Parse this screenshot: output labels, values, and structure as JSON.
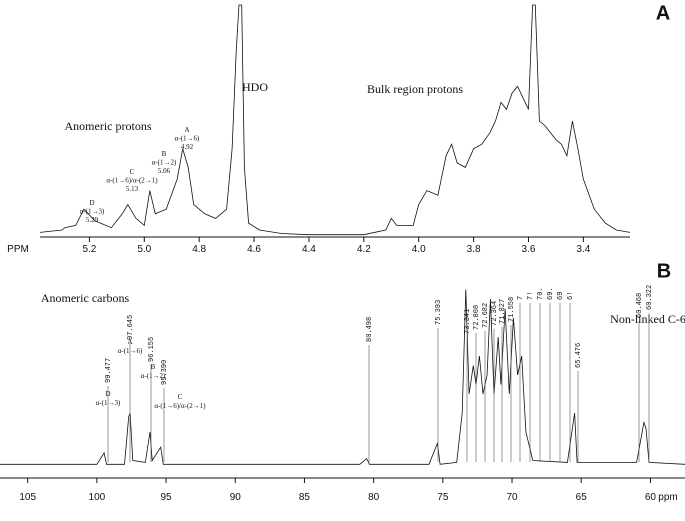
{
  "chart_data": [
    {
      "type": "line",
      "panel_label": "A",
      "color": "#111111",
      "x_label": "PPM",
      "xlim": [
        5.38,
        3.23
      ],
      "ylim": [
        0,
        100
      ],
      "xticks": [
        5.2,
        {
          "value": 5,
          "label": "5.0"
        },
        4.8,
        4.6,
        4.4,
        4.2,
        {
          "value": 4,
          "label": "4.0"
        },
        3.8,
        3.6,
        3.4
      ],
      "x": [
        5.38,
        5.3,
        5.29,
        5.25,
        5.22,
        5.18,
        5.12,
        5.08,
        5.06,
        5.03,
        5.0,
        4.98,
        4.96,
        4.92,
        4.88,
        4.86,
        4.84,
        4.82,
        4.78,
        4.74,
        4.7,
        4.68,
        4.665,
        4.655,
        4.645,
        4.635,
        4.62,
        4.58,
        4.5,
        4.4,
        4.2,
        4.12,
        4.1,
        4.08,
        4.02,
        4.0,
        3.97,
        3.93,
        3.9,
        3.88,
        3.86,
        3.83,
        3.8,
        3.77,
        3.74,
        3.72,
        3.7,
        3.68,
        3.66,
        3.64,
        3.62,
        3.6,
        3.585,
        3.575,
        3.56,
        3.54,
        3.52,
        3.5,
        3.48,
        3.46,
        3.44,
        3.42,
        3.4,
        3.36,
        3.32,
        3.28,
        3.23
      ],
      "values": [
        2,
        3,
        4,
        5,
        12,
        7,
        4,
        10,
        14,
        8,
        5,
        20,
        10,
        12,
        25,
        38,
        30,
        14,
        10,
        8,
        12,
        38,
        80,
        100,
        100,
        30,
        6,
        3,
        1.5,
        1,
        1,
        3,
        8,
        5,
        5,
        14,
        20,
        18,
        35,
        40,
        32,
        30,
        38,
        40,
        45,
        50,
        58,
        55,
        62,
        65,
        60,
        55,
        100,
        100,
        50,
        48,
        45,
        42,
        40,
        35,
        50,
        38,
        25,
        12,
        6,
        3,
        2
      ],
      "annotations": [
        {
          "lines": [
            "HDO"
          ]
        },
        {
          "lines": [
            "Bulk region protons"
          ]
        },
        {
          "lines": [
            "Anomeric protons"
          ]
        },
        {
          "lines": [
            "D",
            "α-(1→3)",
            "5.29"
          ]
        },
        {
          "lines": [
            "C",
            "α-(1→6)/α-(2→1)",
            "5.13"
          ]
        },
        {
          "lines": [
            "B",
            "α-(1→2)",
            "5.06"
          ]
        },
        {
          "lines": [
            "A",
            "α-(1→6)",
            "4.92"
          ]
        }
      ]
    },
    {
      "type": "line",
      "panel_label": "B",
      "color": "#111111",
      "x_label": "ppm",
      "xlim": [
        107,
        57.5
      ],
      "ylim": [
        0,
        100
      ],
      "xticks": [
        105,
        100,
        95,
        90,
        85,
        80,
        75,
        70,
        65,
        60
      ],
      "x": [
        107,
        100,
        99.48,
        99.3,
        98,
        97.7,
        97.6,
        97.4,
        96.5,
        96.16,
        96,
        95.39,
        95.2,
        90,
        81,
        80.5,
        80.3,
        76,
        75.39,
        75.2,
        74,
        73.6,
        73.34,
        73.1,
        72.8,
        72.6,
        72.36,
        72.1,
        71.8,
        71.56,
        71.3,
        71,
        70.8,
        70.5,
        70.2,
        69.9,
        69.6,
        69.3,
        69,
        68.5,
        66,
        65.48,
        65.3,
        61,
        60.47,
        60.32,
        60.1,
        57.5
      ],
      "values": [
        3,
        3,
        9,
        3,
        3,
        28,
        30,
        5,
        4,
        20,
        5,
        12,
        3,
        3,
        3,
        6,
        3,
        3,
        14,
        3,
        4,
        30,
        95,
        40,
        55,
        45,
        60,
        40,
        50,
        90,
        40,
        70,
        45,
        85,
        40,
        80,
        50,
        60,
        20,
        5,
        4,
        30,
        4,
        4,
        25,
        22,
        4,
        3
      ],
      "peak_labels": [
        "99.477",
        "97.645",
        "96.155",
        "95.390",
        "80.498",
        "75.393",
        "73.341",
        "72.808",
        "72.682",
        "72.364",
        "71.827",
        "71.558",
        "7",
        "7!",
        "70.",
        "69.",
        "69",
        "6!",
        "65.476",
        "60.468",
        "60.322"
      ],
      "annotations": [
        {
          "lines": [
            "Anomeric carbons"
          ]
        },
        {
          "lines": [
            "D",
            "α-(1→3)"
          ]
        },
        {
          "lines": [
            "A",
            "α-(1→6)"
          ]
        },
        {
          "lines": [
            "B",
            "α-(1→2)"
          ]
        },
        {
          "lines": [
            "C",
            "α-(1→6)/α-(2→1)"
          ]
        },
        {
          "lines": [
            "Non-linked C-6"
          ]
        }
      ]
    }
  ]
}
